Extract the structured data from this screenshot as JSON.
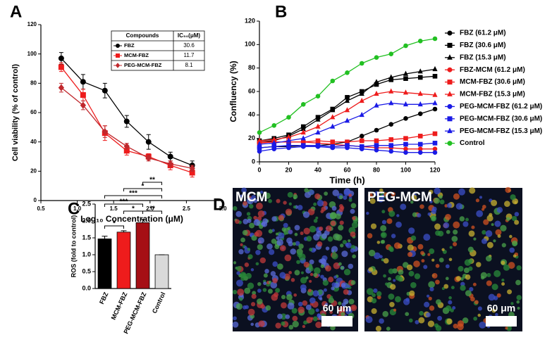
{
  "chart_data": [
    {
      "type": "line",
      "panel_label": "A",
      "x_label": "Log₁₀ Concentration (μM)",
      "y_label": "Cell viability (% of control)",
      "x": [
        0.78,
        1.08,
        1.38,
        1.68,
        1.98,
        2.28,
        2.58
      ],
      "xlim": [
        0.5,
        3.0
      ],
      "xticks": [
        0.5,
        {
          "value": 1,
          "label": "1.0"
        },
        1.5,
        {
          "value": 2,
          "label": "2.0"
        },
        2.5,
        {
          "value": 3,
          "label": "3.0"
        }
      ],
      "ylim": [
        0,
        120
      ],
      "yticks": [
        0,
        20,
        40,
        60,
        80,
        100,
        120
      ],
      "table_header": [
        "Compounds",
        "IC₅₀(μM)"
      ],
      "series": [
        {
          "name": "FBZ",
          "color": "#000000",
          "marker": "circle",
          "values": [
            97,
            81,
            75,
            54,
            40,
            30,
            24
          ],
          "errors": [
            4,
            5,
            5,
            4,
            5,
            3,
            3
          ],
          "ic50": 30.6
        },
        {
          "name": "MCM-FBZ",
          "color": "#ee1c1c",
          "marker": "square",
          "values": [
            91,
            72,
            46,
            34,
            30,
            24,
            19
          ],
          "errors": [
            3,
            4,
            5,
            3,
            2,
            3,
            3
          ],
          "ic50": 11.7
        },
        {
          "name": "PEG-MCM-FBZ",
          "color": "#c0282d",
          "marker": "diamond",
          "values": [
            77,
            65,
            47,
            37,
            29,
            25,
            22
          ],
          "errors": [
            3,
            3,
            4,
            2,
            2,
            2,
            2
          ],
          "ic50": 8.1
        }
      ]
    },
    {
      "type": "line",
      "panel_label": "B",
      "x_label": "Time (h)",
      "y_label": "Confluency (%)",
      "x": [
        0,
        10,
        20,
        30,
        40,
        50,
        60,
        70,
        80,
        90,
        100,
        110,
        120
      ],
      "xlim": [
        0,
        120
      ],
      "xticks": [
        0,
        20,
        40,
        60,
        80,
        100,
        120
      ],
      "ylim": [
        0,
        120
      ],
      "yticks": [
        0,
        20,
        40,
        60,
        80,
        100,
        120
      ],
      "legend": "right",
      "series": [
        {
          "name": "FBZ (61.2 μM)",
          "color": "#000000",
          "marker": "circle",
          "values": [
            12,
            13,
            13,
            14,
            14,
            15,
            17,
            22,
            27,
            32,
            37,
            41,
            45
          ]
        },
        {
          "name": "FBZ (30.6 μM)",
          "color": "#000000",
          "marker": "square",
          "values": [
            18,
            20,
            23,
            30,
            38,
            45,
            55,
            60,
            66,
            70,
            71,
            72,
            73
          ]
        },
        {
          "name": "FBZ (15.3 μM)",
          "color": "#000000",
          "marker": "triangle",
          "values": [
            17,
            18,
            22,
            28,
            36,
            44,
            52,
            58,
            68,
            72,
            75,
            77,
            79
          ]
        },
        {
          "name": "FBZ-MCM (61.2 μM)",
          "color": "#ee1c1c",
          "marker": "circle",
          "values": [
            17,
            17,
            17,
            17,
            16,
            15,
            14,
            13,
            12,
            12,
            11,
            11,
            11
          ]
        },
        {
          "name": "MCM-FBZ (30.6 μM)",
          "color": "#ee1c1c",
          "marker": "square",
          "values": [
            16,
            17,
            17,
            17,
            18,
            17,
            17,
            18,
            18,
            19,
            20,
            22,
            24
          ]
        },
        {
          "name": "MCM-FBZ (15.3 μM)",
          "color": "#ee1c1c",
          "marker": "triangle",
          "values": [
            18,
            19,
            21,
            25,
            30,
            38,
            44,
            52,
            58,
            60,
            59,
            58,
            57
          ]
        },
        {
          "name": "PEG-MCM-FBZ (61.2 μM)",
          "color": "#1a1ae6",
          "marker": "circle",
          "values": [
            9,
            11,
            12,
            13,
            13,
            12,
            12,
            11,
            10,
            9,
            8,
            8,
            8
          ]
        },
        {
          "name": "PEG-MCM-FBZ (30.6 μM)",
          "color": "#1a1ae6",
          "marker": "square",
          "values": [
            12,
            13,
            14,
            14,
            14,
            13,
            14,
            13,
            14,
            14,
            15,
            15,
            16
          ]
        },
        {
          "name": "PEG-MCM-FBZ (15.3 μM)",
          "color": "#1a1ae6",
          "marker": "triangle",
          "values": [
            15,
            16,
            18,
            20,
            25,
            30,
            35,
            40,
            48,
            50,
            49,
            49,
            50
          ]
        },
        {
          "name": "Control",
          "color": "#22c022",
          "marker": "circle",
          "values": [
            25,
            31,
            38,
            49,
            56,
            69,
            76,
            84,
            89,
            92,
            99,
            103,
            105
          ]
        }
      ]
    },
    {
      "type": "bar",
      "panel_label": "C",
      "y_label": "ROS (fold to control)",
      "categories": [
        "FBZ",
        "MCM-FBZ",
        "PEG-MCM-FBZ",
        "Control"
      ],
      "values": [
        1.47,
        1.67,
        1.95,
        1.0
      ],
      "errors": [
        0.08,
        0.04,
        0.1,
        0
      ],
      "colors": [
        "#000000",
        "#ee1c1c",
        "#a50f15",
        "#d9d9d9"
      ],
      "ylim": [
        0,
        2.5
      ],
      "yticks": [
        {
          "value": 0,
          "label": "0.0"
        },
        0.5,
        {
          "value": 1,
          "label": "1.0"
        },
        1.5,
        {
          "value": 2,
          "label": "2.0"
        },
        2.5
      ],
      "significance": [
        "**",
        "*",
        "***",
        "***",
        "*",
        "**",
        "*"
      ]
    }
  ],
  "image_panel": {
    "panel_label": "D",
    "images": [
      {
        "label": "MCM",
        "scale_bar": "60 μm"
      },
      {
        "label": "PEG-MCM",
        "scale_bar": "60 μm"
      }
    ]
  }
}
